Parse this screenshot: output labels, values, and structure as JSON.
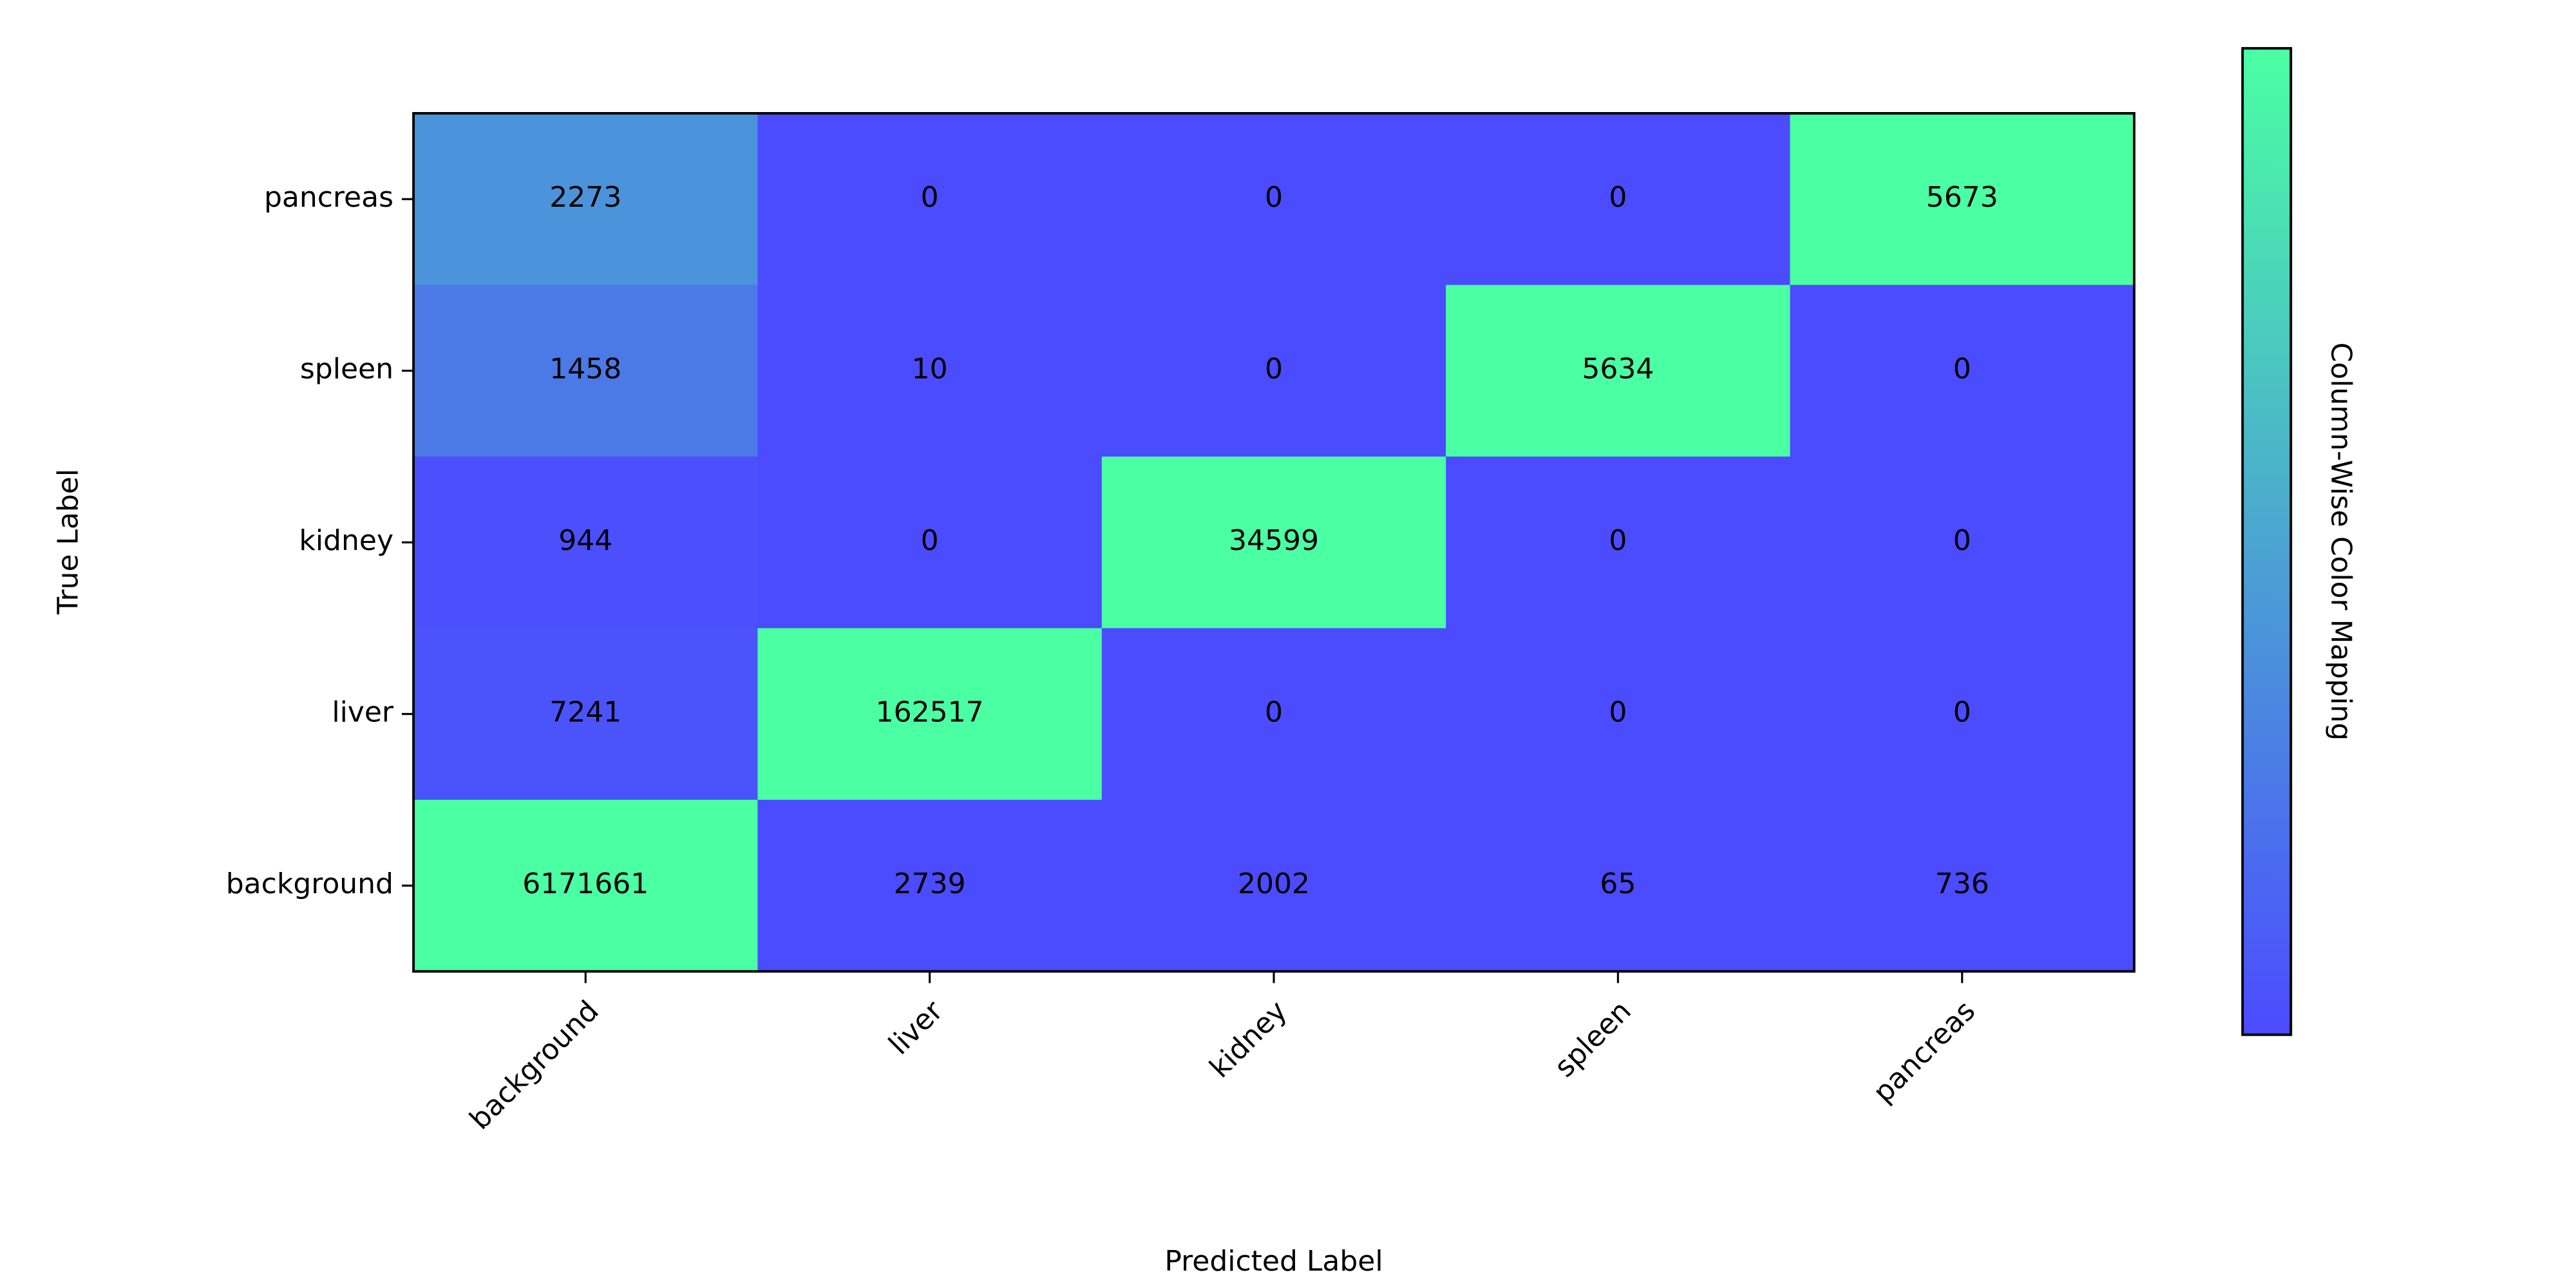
{
  "chart_data": {
    "type": "heatmap",
    "x_label": "Predicted Label",
    "y_label": "True Label",
    "x_categories": [
      "background",
      "liver",
      "kidney",
      "spleen",
      "pancreas"
    ],
    "y_categories": [
      "pancreas",
      "spleen",
      "kidney",
      "liver",
      "background"
    ],
    "values": [
      [
        2273,
        0,
        0,
        0,
        5673
      ],
      [
        1458,
        10,
        0,
        5634,
        0
      ],
      [
        944,
        0,
        34599,
        0,
        0
      ],
      [
        7241,
        162517,
        0,
        0,
        0
      ],
      [
        6171661,
        2739,
        2002,
        65,
        736
      ]
    ],
    "colormap": [
      "#4b4bff",
      "#4bffa3"
    ],
    "colorbar_label": "Column-Wise Color Mapping"
  }
}
